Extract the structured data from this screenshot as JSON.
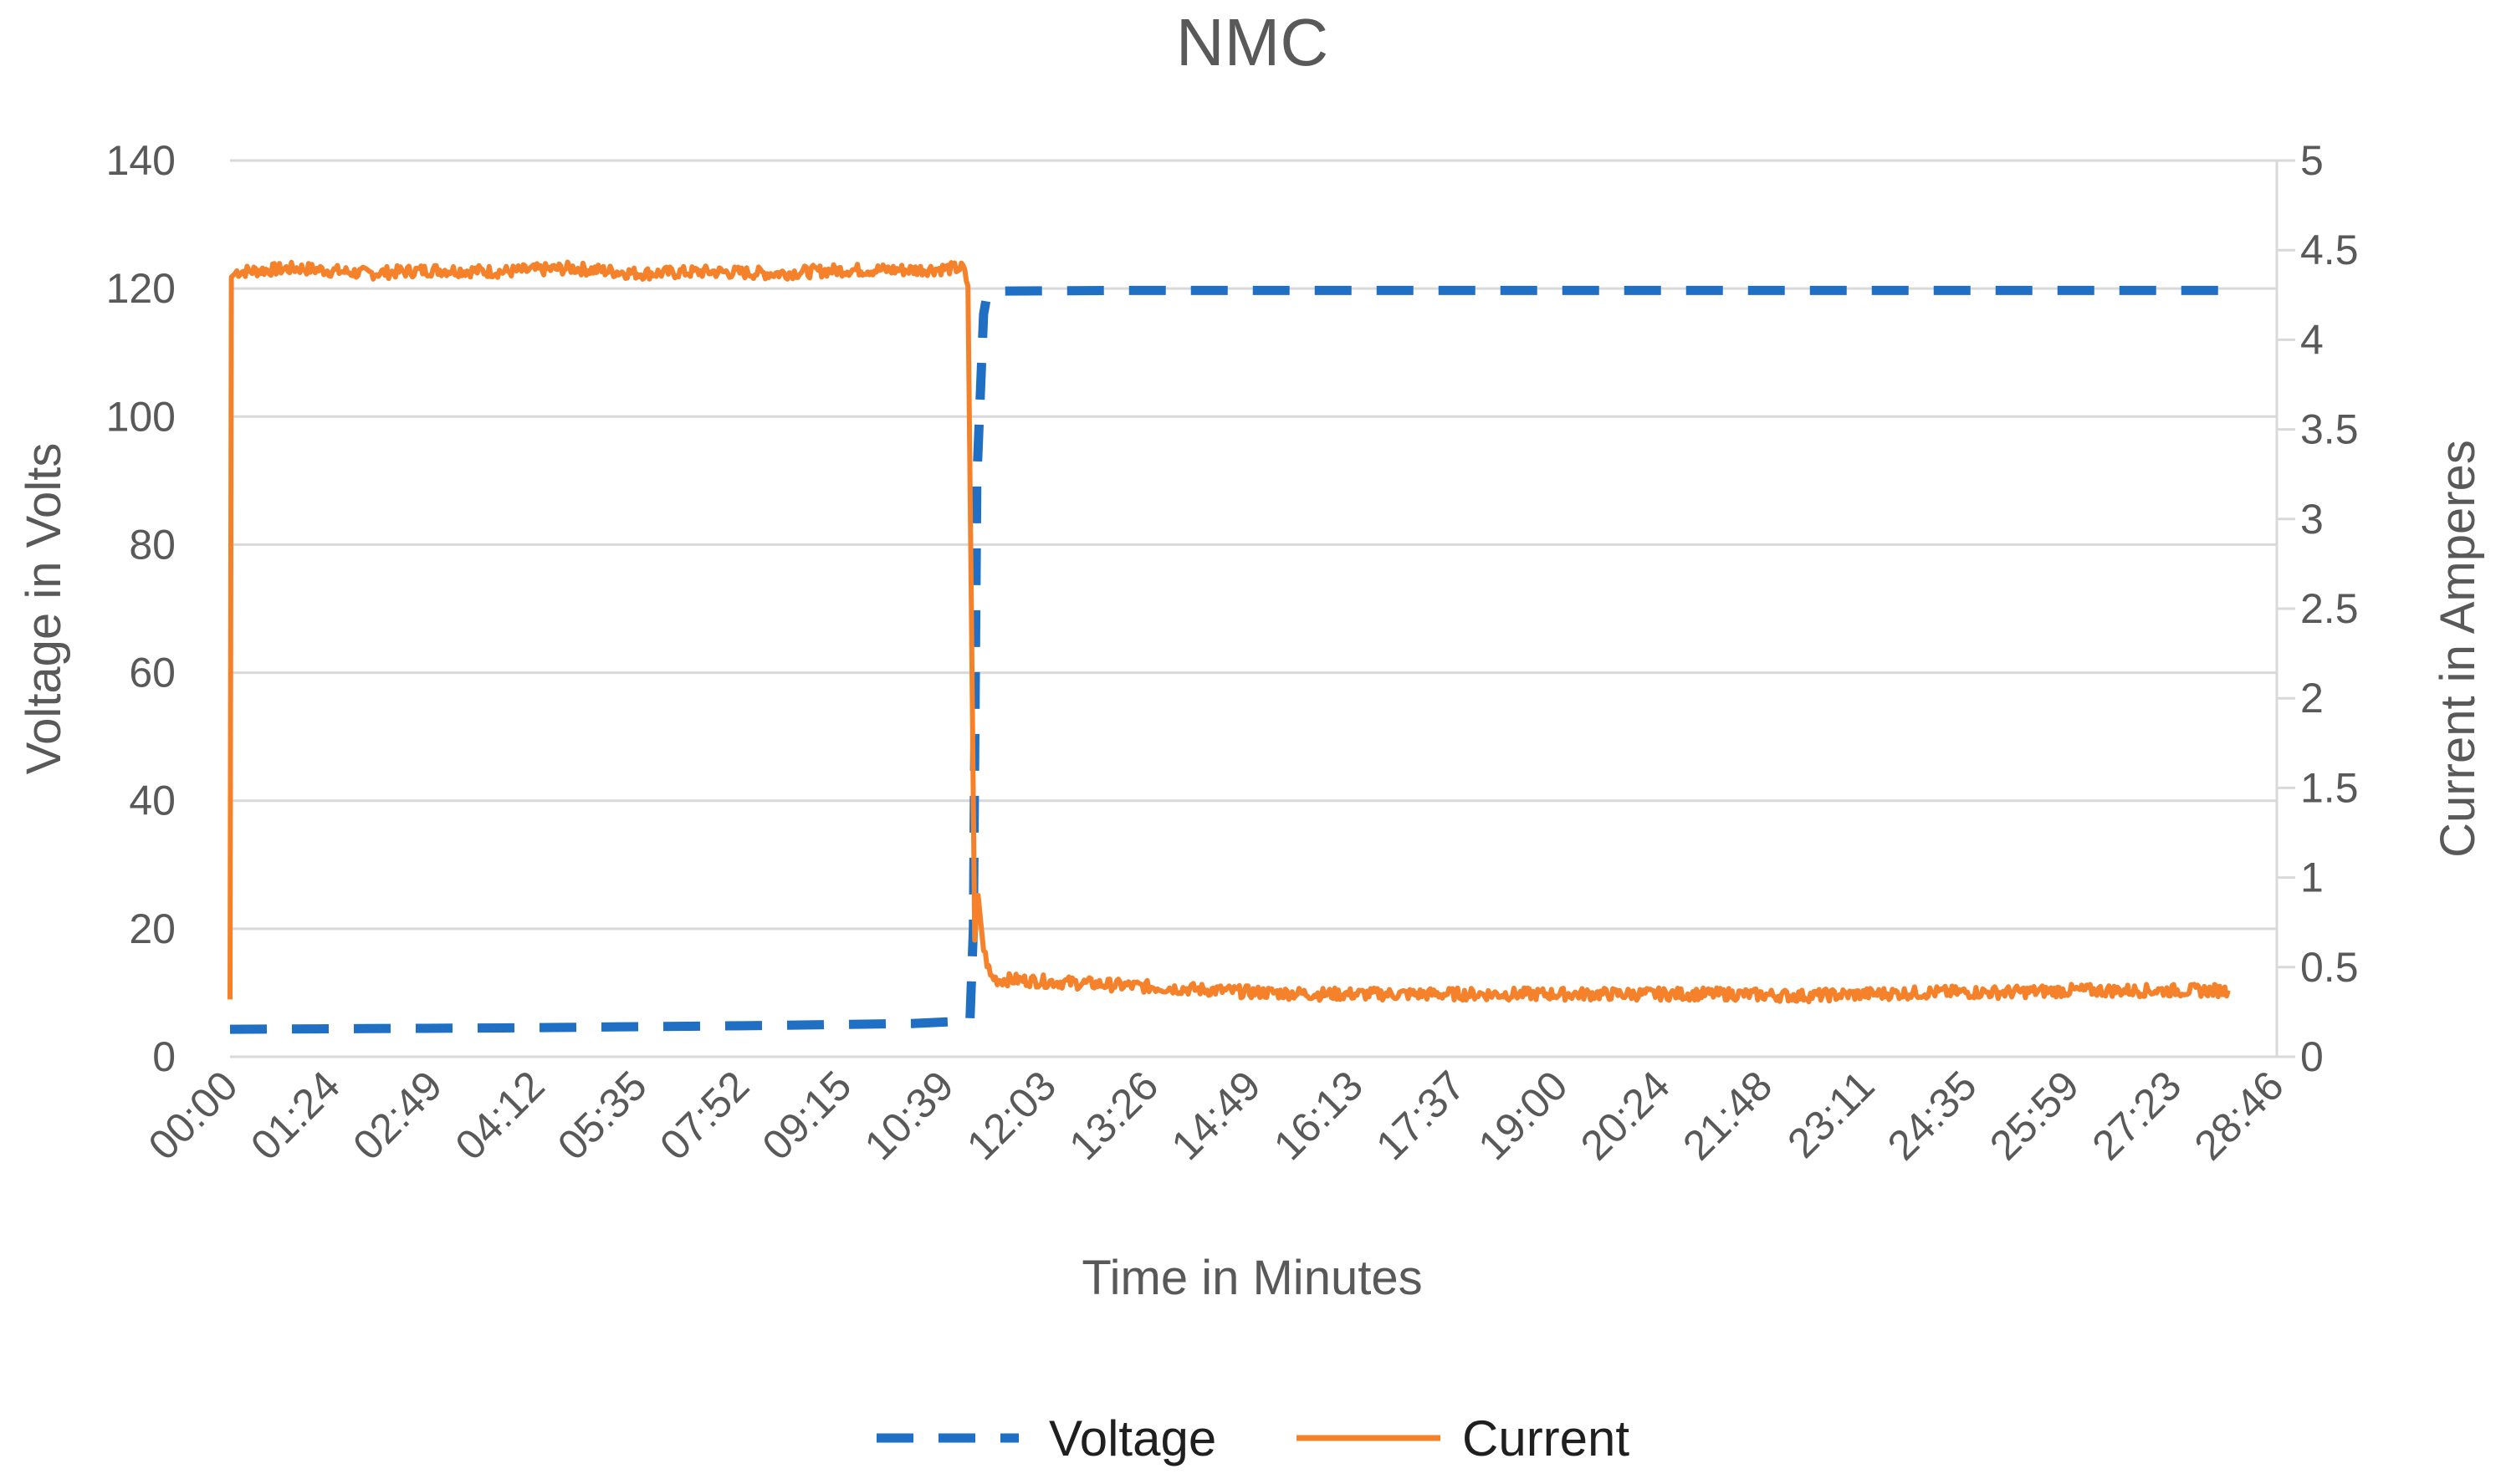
{
  "chart_data": {
    "type": "line",
    "title": "NMC",
    "xlabel": "Time in Minutes",
    "ylabel": "Voltage in Volts",
    "y2label": "Current in Amperes",
    "x_tick_labels": [
      "00:00",
      "01:24",
      "02:49",
      "04:12",
      "05:35",
      "07:52",
      "09:15",
      "10:39",
      "12:03",
      "13:26",
      "14:49",
      "16:13",
      "17:37",
      "19:00",
      "20:24",
      "21:48",
      "23:11",
      "24:35",
      "25:59",
      "27:23",
      "28:46"
    ],
    "x_range_minutes": [
      0,
      30
    ],
    "ylim": [
      0,
      140
    ],
    "yticks": [
      0,
      20,
      40,
      60,
      80,
      100,
      120,
      140
    ],
    "y2lim": [
      0,
      5
    ],
    "y2ticks": [
      0,
      0.5,
      1,
      1.5,
      2,
      2.5,
      3,
      3.5,
      4,
      4.5,
      5
    ],
    "y2tick_labels": [
      "0",
      "0.5",
      "1",
      "1.5",
      "2",
      "2.5",
      "3",
      "3.5",
      "4",
      "4.5",
      "5"
    ],
    "grid": true,
    "legend_position": "bottom",
    "series": [
      {
        "name": "Voltage",
        "axis": "left",
        "style": "dashed",
        "color": "#1f6fc5",
        "x_minutes": [
          0,
          2,
          4,
          6,
          8,
          10,
          10.85,
          10.9,
          10.95,
          11.05,
          11.1,
          11.3,
          13,
          15,
          17,
          19,
          21,
          23,
          25,
          27,
          29.3
        ],
        "values": [
          4.3,
          4.4,
          4.5,
          4.7,
          4.9,
          5.2,
          5.6,
          20,
          90,
          116,
          119,
          119.6,
          119.7,
          119.7,
          119.7,
          119.7,
          119.7,
          119.7,
          119.7,
          119.7,
          119.7
        ]
      },
      {
        "name": "Current",
        "axis": "right",
        "style": "solid",
        "color": "#f5822a",
        "x_minutes": [
          0,
          0.02,
          0.1,
          1,
          2,
          3,
          4,
          5,
          6,
          7,
          8,
          9,
          10,
          10.75,
          10.82,
          10.87,
          10.92,
          10.97,
          11.05,
          11.15,
          11.25,
          11.5,
          12,
          12.5,
          13,
          14,
          15,
          16,
          17,
          18,
          19,
          20,
          21,
          22,
          23,
          24,
          25,
          26,
          27,
          28,
          29,
          29.3
        ],
        "values": [
          0.32,
          4.35,
          4.38,
          4.4,
          4.37,
          4.39,
          4.38,
          4.4,
          4.37,
          4.38,
          4.37,
          4.39,
          4.39,
          4.4,
          4.3,
          2.5,
          0.65,
          0.9,
          0.6,
          0.45,
          0.43,
          0.43,
          0.42,
          0.41,
          0.4,
          0.38,
          0.36,
          0.35,
          0.35,
          0.35,
          0.35,
          0.35,
          0.35,
          0.35,
          0.34,
          0.35,
          0.36,
          0.36,
          0.37,
          0.37,
          0.37,
          0.37
        ]
      }
    ]
  }
}
